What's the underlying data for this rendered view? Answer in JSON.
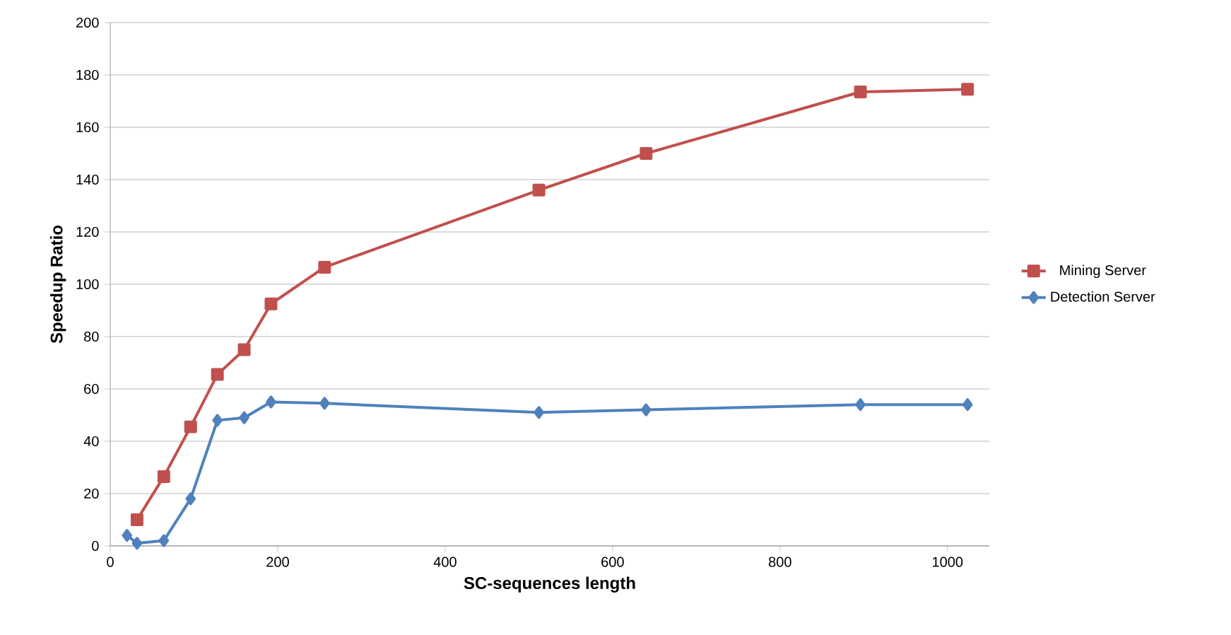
{
  "chart_data": {
    "type": "line",
    "xlabel": "SC-sequences length",
    "ylabel": "Speedup Ratio",
    "xlim": [
      0,
      1050
    ],
    "xticks": [
      0,
      200,
      400,
      600,
      800,
      1000
    ],
    "ylim": [
      0,
      200
    ],
    "yticks": [
      0,
      20,
      40,
      60,
      80,
      100,
      120,
      140,
      160,
      180,
      200
    ],
    "grid": "y",
    "legend": "right",
    "series": [
      {
        "name": "Mining Server",
        "color": "#c0504d",
        "marker": "square",
        "x": [
          32,
          64,
          96,
          128,
          160,
          192,
          256,
          512,
          640,
          896,
          1024
        ],
        "values": [
          10,
          26.5,
          45.5,
          65.5,
          75,
          92.5,
          106.5,
          136,
          150,
          173.5,
          174.5
        ]
      },
      {
        "name": "Detection Server",
        "color": "#4f81bd",
        "marker": "diamond",
        "x": [
          20,
          32,
          64,
          96,
          128,
          160,
          192,
          256,
          512,
          640,
          896,
          1024
        ],
        "values": [
          4,
          1,
          2,
          18,
          48,
          49,
          55,
          54.5,
          51,
          52,
          54,
          54
        ]
      }
    ]
  }
}
